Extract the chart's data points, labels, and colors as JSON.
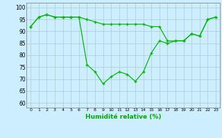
{
  "x": [
    0,
    1,
    2,
    3,
    4,
    5,
    6,
    7,
    8,
    9,
    10,
    11,
    12,
    13,
    14,
    15,
    16,
    17,
    18,
    19,
    20,
    21,
    22,
    23
  ],
  "y_upper": [
    92,
    96,
    97,
    96,
    96,
    96,
    96,
    95,
    94,
    93,
    93,
    93,
    93,
    93,
    93,
    92,
    92,
    86,
    86,
    86,
    89,
    88,
    95,
    96
  ],
  "y_lower": [
    92,
    96,
    97,
    96,
    96,
    96,
    96,
    76,
    73,
    68,
    71,
    73,
    72,
    69,
    73,
    81,
    86,
    85,
    86,
    86,
    89,
    88,
    95,
    96
  ],
  "line_color": "#00bb00",
  "marker": "+",
  "bg_color": "#cceeff",
  "grid_color": "#aacccc",
  "xlabel": "Humidité relative (%)",
  "xlabel_color": "#00aa00",
  "yticks": [
    60,
    65,
    70,
    75,
    80,
    85,
    90,
    95,
    100
  ],
  "ylim": [
    58,
    102
  ],
  "xlim": [
    -0.5,
    23.5
  ]
}
